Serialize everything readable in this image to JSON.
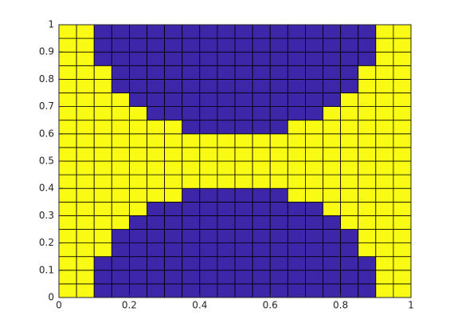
{
  "chart_data": {
    "type": "heatmap",
    "colors": [
      "#3e26a8",
      "#f9fb15"
    ],
    "xlim": [
      0,
      1
    ],
    "ylim": [
      0,
      1
    ],
    "xticks": [
      0,
      0.2,
      0.4,
      0.6,
      0.8,
      1
    ],
    "yticks": [
      0,
      0.1,
      0.2,
      0.3,
      0.4,
      0.5,
      0.6,
      0.7,
      0.8,
      0.9,
      1
    ],
    "z": [
      [
        1,
        1,
        0,
        0,
        0,
        0,
        0,
        0,
        0,
        0,
        0,
        0,
        0,
        0,
        0,
        0,
        0,
        0,
        1,
        1
      ],
      [
        1,
        1,
        0,
        0,
        0,
        0,
        0,
        0,
        0,
        0,
        0,
        0,
        0,
        0,
        0,
        0,
        0,
        0,
        1,
        1
      ],
      [
        1,
        1,
        0,
        0,
        0,
        0,
        0,
        0,
        0,
        0,
        0,
        0,
        0,
        0,
        0,
        0,
        0,
        0,
        1,
        1
      ],
      [
        1,
        1,
        1,
        0,
        0,
        0,
        0,
        0,
        0,
        0,
        0,
        0,
        0,
        0,
        0,
        0,
        0,
        1,
        1,
        1
      ],
      [
        1,
        1,
        1,
        0,
        0,
        0,
        0,
        0,
        0,
        0,
        0,
        0,
        0,
        0,
        0,
        0,
        0,
        1,
        1,
        1
      ],
      [
        1,
        1,
        1,
        1,
        0,
        0,
        0,
        0,
        0,
        0,
        0,
        0,
        0,
        0,
        0,
        0,
        1,
        1,
        1,
        1
      ],
      [
        1,
        1,
        1,
        1,
        1,
        0,
        0,
        0,
        0,
        0,
        0,
        0,
        0,
        0,
        0,
        1,
        1,
        1,
        1,
        1
      ],
      [
        1,
        1,
        1,
        1,
        1,
        1,
        1,
        0,
        0,
        0,
        0,
        0,
        0,
        1,
        1,
        1,
        1,
        1,
        1,
        1
      ],
      [
        1,
        1,
        1,
        1,
        1,
        1,
        1,
        1,
        1,
        1,
        1,
        1,
        1,
        1,
        1,
        1,
        1,
        1,
        1,
        1
      ],
      [
        1,
        1,
        1,
        1,
        1,
        1,
        1,
        1,
        1,
        1,
        1,
        1,
        1,
        1,
        1,
        1,
        1,
        1,
        1,
        1
      ],
      [
        1,
        1,
        1,
        1,
        1,
        1,
        1,
        1,
        1,
        1,
        1,
        1,
        1,
        1,
        1,
        1,
        1,
        1,
        1,
        1
      ],
      [
        1,
        1,
        1,
        1,
        1,
        1,
        1,
        1,
        1,
        1,
        1,
        1,
        1,
        1,
        1,
        1,
        1,
        1,
        1,
        1
      ],
      [
        1,
        1,
        1,
        1,
        1,
        1,
        1,
        0,
        0,
        0,
        0,
        0,
        0,
        1,
        1,
        1,
        1,
        1,
        1,
        1
      ],
      [
        1,
        1,
        1,
        1,
        1,
        0,
        0,
        0,
        0,
        0,
        0,
        0,
        0,
        0,
        0,
        1,
        1,
        1,
        1,
        1
      ],
      [
        1,
        1,
        1,
        1,
        0,
        0,
        0,
        0,
        0,
        0,
        0,
        0,
        0,
        0,
        0,
        0,
        1,
        1,
        1,
        1
      ],
      [
        1,
        1,
        1,
        0,
        0,
        0,
        0,
        0,
        0,
        0,
        0,
        0,
        0,
        0,
        0,
        0,
        0,
        1,
        1,
        1
      ],
      [
        1,
        1,
        1,
        0,
        0,
        0,
        0,
        0,
        0,
        0,
        0,
        0,
        0,
        0,
        0,
        0,
        0,
        1,
        1,
        1
      ],
      [
        1,
        1,
        0,
        0,
        0,
        0,
        0,
        0,
        0,
        0,
        0,
        0,
        0,
        0,
        0,
        0,
        0,
        0,
        1,
        1
      ],
      [
        1,
        1,
        0,
        0,
        0,
        0,
        0,
        0,
        0,
        0,
        0,
        0,
        0,
        0,
        0,
        0,
        0,
        0,
        1,
        1
      ],
      [
        1,
        1,
        0,
        0,
        0,
        0,
        0,
        0,
        0,
        0,
        0,
        0,
        0,
        0,
        0,
        0,
        0,
        0,
        1,
        1
      ]
    ]
  }
}
